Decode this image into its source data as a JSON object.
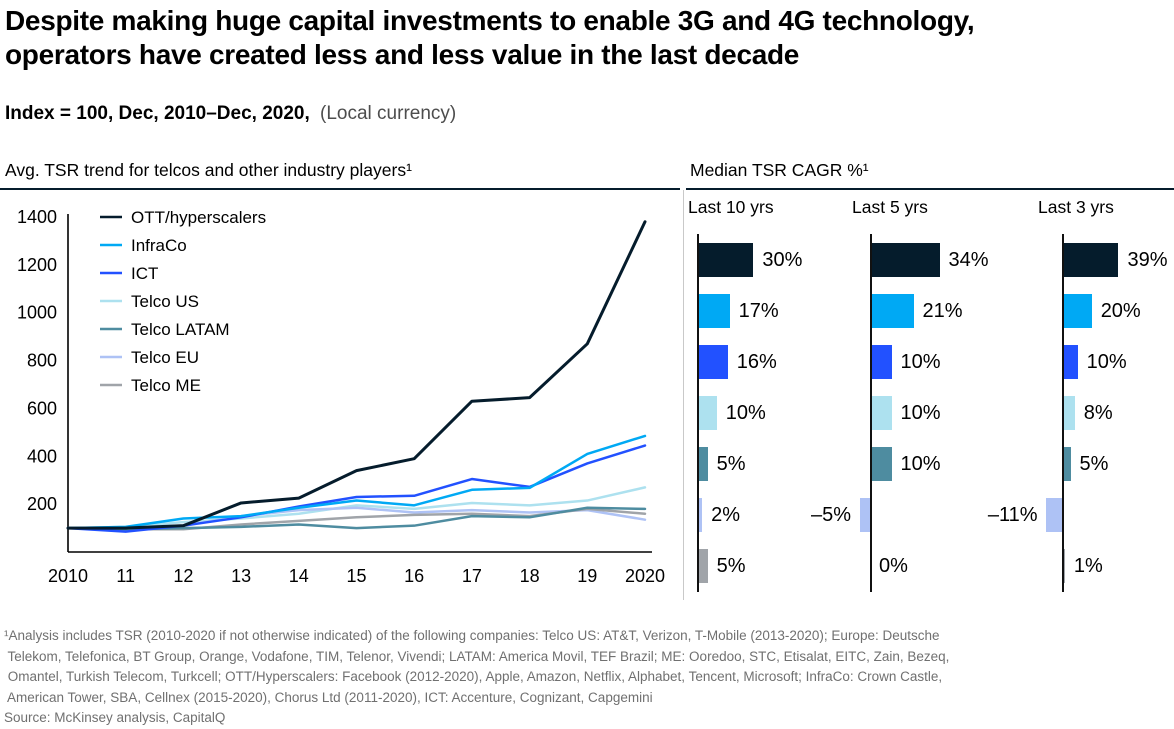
{
  "page": {
    "title_line1": "Despite making huge capital investments to enable 3G and 4G technology,",
    "title_line2": "operators have created less and less value in the last decade",
    "subtitle_bold": "Index = 100, Dec, 2010–Dec, 2020,",
    "subtitle_light": "(Local currency)"
  },
  "colors": {
    "ott": "#051C2C",
    "infraco": "#00A9F4",
    "ict": "#2251FF",
    "telco_us": "#ADE1EF",
    "telco_latam": "#4E8CA0",
    "telco_eu": "#AEC2F5",
    "telco_me": "#A0A4A9",
    "rule": "#051C2C",
    "divider": "#C9C9C9"
  },
  "chart_data": [
    {
      "type": "line",
      "title": "Avg. TSR trend for telcos and other industry players¹",
      "x": [
        2010,
        2011,
        2012,
        2013,
        2014,
        2015,
        2016,
        2017,
        2018,
        2019,
        2020
      ],
      "x_tick_labels": [
        "2010",
        "11",
        "12",
        "13",
        "14",
        "15",
        "16",
        "17",
        "18",
        "19",
        "2020"
      ],
      "ylim": [
        0,
        1400
      ],
      "yticks": [
        200,
        400,
        600,
        800,
        1000,
        1200,
        1400
      ],
      "grid": false,
      "legend_position": "top-left",
      "series": [
        {
          "name": "OTT/hyperscalers",
          "color": "#051C2C",
          "values": [
            100,
            100,
            110,
            205,
            225,
            340,
            390,
            630,
            645,
            870,
            1380
          ]
        },
        {
          "name": "InfraCo",
          "color": "#00A9F4",
          "values": [
            100,
            105,
            140,
            150,
            185,
            215,
            195,
            260,
            268,
            410,
            485
          ]
        },
        {
          "name": "ICT",
          "color": "#2251FF",
          "values": [
            100,
            85,
            110,
            145,
            190,
            230,
            235,
            305,
            272,
            370,
            445
          ]
        },
        {
          "name": "Telco US",
          "color": "#ADE1EF",
          "values": [
            100,
            105,
            125,
            140,
            160,
            195,
            180,
            205,
            195,
            215,
            270
          ]
        },
        {
          "name": "Telco LATAM",
          "color": "#4E8CA0",
          "values": [
            100,
            95,
            100,
            105,
            115,
            100,
            110,
            150,
            145,
            185,
            180
          ]
        },
        {
          "name": "Telco EU",
          "color": "#AEC2F5",
          "values": [
            100,
            95,
            110,
            150,
            175,
            185,
            165,
            175,
            165,
            175,
            135
          ]
        },
        {
          "name": "Telco ME",
          "color": "#A0A4A9",
          "values": [
            100,
            95,
            95,
            115,
            130,
            145,
            155,
            160,
            150,
            180,
            160
          ]
        }
      ]
    },
    {
      "type": "bar",
      "title": "Median TSR CAGR %¹",
      "row_series": [
        "OTT/hyperscalers",
        "InfraCo",
        "ICT",
        "Telco US",
        "Telco LATAM",
        "Telco EU",
        "Telco ME"
      ],
      "row_colors": [
        "#051C2C",
        "#00A9F4",
        "#2251FF",
        "#ADE1EF",
        "#4E8CA0",
        "#AEC2F5",
        "#A0A4A9"
      ],
      "value_suffix": "%",
      "groups": [
        {
          "label": "Last 10 yrs",
          "values": [
            30,
            17,
            16,
            10,
            5,
            2,
            5
          ],
          "labels": [
            "30%",
            "17%",
            "16%",
            "10%",
            "5%",
            "2%",
            "5%"
          ]
        },
        {
          "label": "Last 5 yrs",
          "values": [
            34,
            21,
            10,
            10,
            10,
            -5,
            0
          ],
          "labels": [
            "34%",
            "21%",
            "10%",
            "10%",
            "10%",
            "–5%",
            "0%"
          ]
        },
        {
          "label": "Last 3 yrs",
          "values": [
            39,
            20,
            10,
            8,
            5,
            -11,
            1
          ],
          "labels": [
            "39%",
            "20%",
            "10%",
            "8%",
            "5%",
            "–11%",
            "1%"
          ]
        }
      ]
    }
  ],
  "footnote": {
    "lines": [
      "¹Analysis includes TSR (2010-2020 if not otherwise indicated) of the following companies: Telco US: AT&T, Verizon, T-Mobile (2013-2020); Europe: Deutsche",
      " Telekom, Telefonica, BT Group, Orange, Vodafone, TIM, Telenor, Vivendi; LATAM: America Movil, TEF Brazil; ME: Ooredoo, STC, Etisalat, EITC, Zain, Bezeq,",
      " Omantel, Turkish Telecom, Turkcell; OTT/Hyperscalers: Facebook (2012-2020), Apple, Amazon, Netflix, Alphabet, Tencent, Microsoft; InfraCo: Crown Castle,",
      " American Tower, SBA, Cellnex (2015-2020), Chorus Ltd (2011-2020), ICT: Accenture, Cognizant, Capgemini"
    ],
    "source": "Source: McKinsey analysis, CapitalQ"
  }
}
